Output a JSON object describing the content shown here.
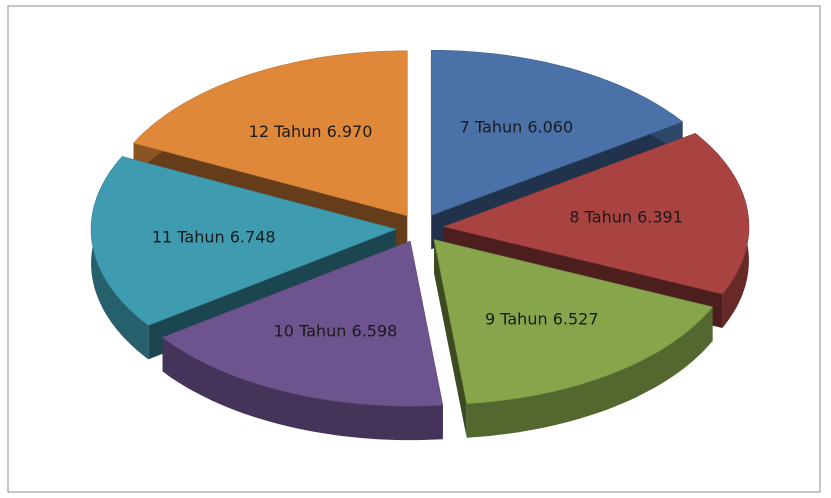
{
  "chart_data": {
    "type": "pie3d",
    "categories": [
      "7 Tahun",
      "8 Tahun",
      "9 Tahun",
      "10 Tahun",
      "11 Tahun",
      "12 Tahun"
    ],
    "values": [
      6060,
      6391,
      6527,
      6598,
      6748,
      6970
    ],
    "value_labels": [
      "6.060",
      "6.391",
      "6.527",
      "6.598",
      "6.748",
      "6.970"
    ],
    "colors": [
      "#4a72a8",
      "#a84342",
      "#87a64b",
      "#6e548f",
      "#3f9bb0",
      "#e0883a"
    ]
  }
}
